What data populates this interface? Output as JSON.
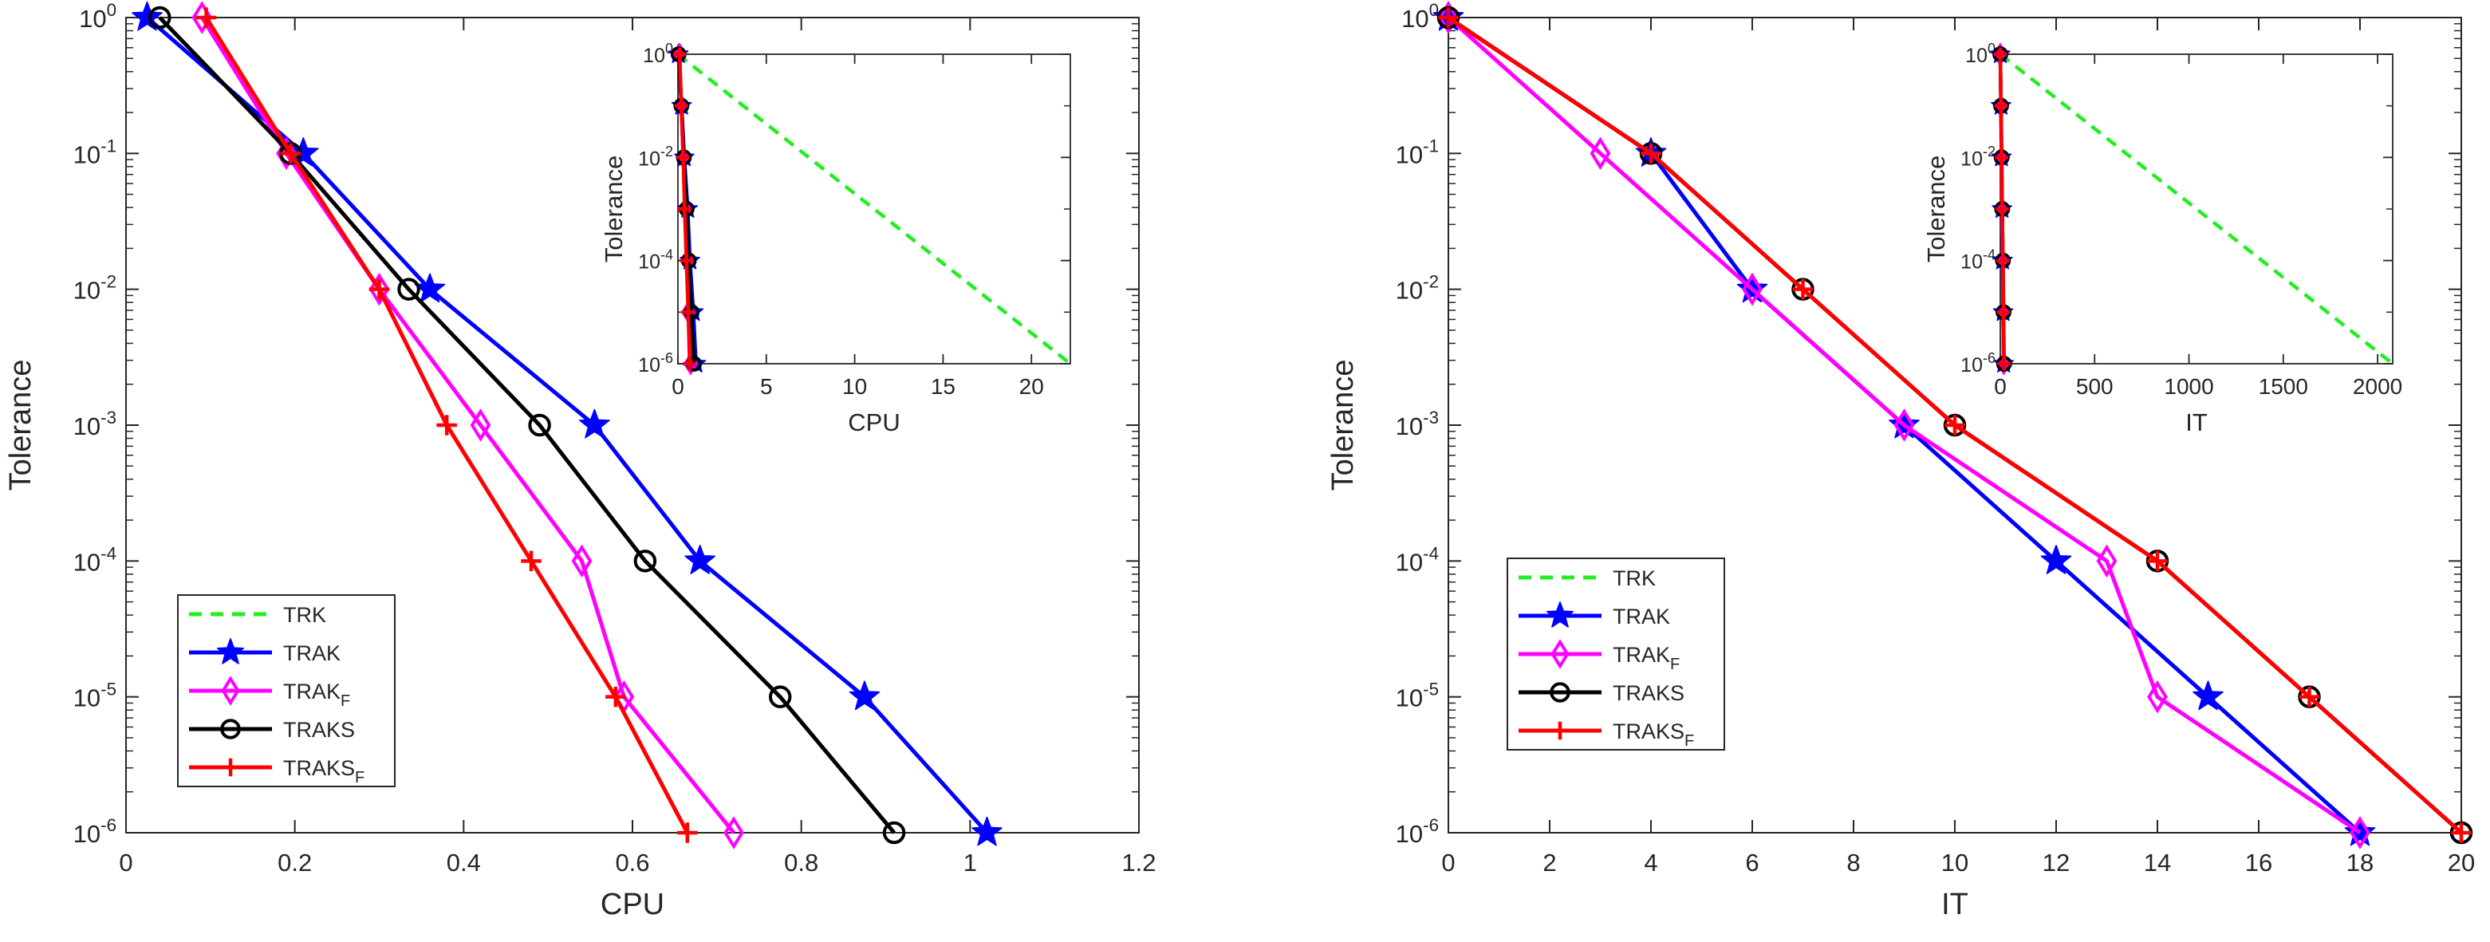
{
  "colors": {
    "TRK": "#22ee22",
    "TRAK": "#0000ff",
    "TRAK_F": "#ff00ff",
    "TRAKS": "#000000",
    "TRAKS_F": "#ff0000",
    "axis": "#262626"
  },
  "chart_data": [
    {
      "type": "line",
      "title": "",
      "xlabel": "CPU",
      "ylabel": "Tolerance",
      "xlim": [
        0,
        1.2
      ],
      "ylim": [
        1e-06,
        1
      ],
      "yscale": "log",
      "xticks": [
        0,
        0.2,
        0.4,
        0.6,
        0.8,
        1,
        1.2
      ],
      "xticklabels": [
        "0",
        "0.2",
        "0.4",
        "0.6",
        "0.8",
        "1",
        "1.2"
      ],
      "yticks": [
        1e-06,
        1e-05,
        0.0001,
        0.001,
        0.01,
        0.1,
        1
      ],
      "yticklabels": [
        [
          "10",
          "-6"
        ],
        [
          "10",
          "-5"
        ],
        [
          "10",
          "-4"
        ],
        [
          "10",
          "-3"
        ],
        [
          "10",
          "-2"
        ],
        [
          "10",
          "-1"
        ],
        [
          "10",
          "0"
        ]
      ],
      "legend_position": "lower-left",
      "legend": [
        {
          "name": "TRK",
          "sub": ""
        },
        {
          "name": "TRAK",
          "sub": ""
        },
        {
          "name": "TRAK",
          "sub": "F"
        },
        {
          "name": "TRAKS",
          "sub": ""
        },
        {
          "name": "TRAKS",
          "sub": "F"
        }
      ],
      "series": [
        {
          "name": "TRAK",
          "color": "TRAK",
          "marker": "star",
          "x": [
            0.025,
            0.21,
            0.36,
            0.555,
            0.68,
            0.875,
            1.02
          ],
          "y": [
            1,
            0.1,
            0.01,
            0.001,
            0.0001,
            1e-05,
            1e-06
          ]
        },
        {
          "name": "TRAK_F",
          "color": "TRAK_F",
          "marker": "diamond",
          "x": [
            0.09,
            0.19,
            0.3,
            0.42,
            0.54,
            0.59,
            0.72
          ],
          "y": [
            1,
            0.1,
            0.01,
            0.001,
            0.0001,
            1e-05,
            1e-06
          ]
        },
        {
          "name": "TRAKS",
          "color": "TRAKS",
          "marker": "circle",
          "x": [
            0.04,
            0.195,
            0.335,
            0.49,
            0.615,
            0.775,
            0.91
          ],
          "y": [
            1,
            0.1,
            0.01,
            0.001,
            0.0001,
            1e-05,
            1e-06
          ]
        },
        {
          "name": "TRAKS_F",
          "color": "TRAKS_F",
          "marker": "plus",
          "x": [
            0.095,
            0.195,
            0.3,
            0.38,
            0.48,
            0.58,
            0.665
          ],
          "y": [
            1,
            0.1,
            0.01,
            0.001,
            0.0001,
            1e-05,
            1e-06
          ]
        }
      ],
      "inset": {
        "xlabel": "CPU",
        "ylabel": "Tolerance",
        "xlim": [
          0,
          22.2
        ],
        "ylim": [
          1e-06,
          1
        ],
        "xticks": [
          0,
          5,
          10,
          15,
          20
        ],
        "xticklabels": [
          "0",
          "5",
          "10",
          "15",
          "20"
        ],
        "yticks": [
          1e-06,
          0.0001,
          0.01,
          1
        ],
        "yticklabels": [
          [
            "10",
            "-6"
          ],
          [
            "10",
            "-4"
          ],
          [
            "10",
            "-2"
          ],
          [
            "10",
            "0"
          ]
        ],
        "series": [
          {
            "name": "TRK",
            "color": "TRK",
            "marker": "none",
            "dashed": true,
            "x": [
              0,
              22.2
            ],
            "y": [
              1,
              1e-06
            ]
          },
          {
            "name": "TRAK",
            "color": "TRAK",
            "marker": "star",
            "x": [
              0.025,
              0.21,
              0.36,
              0.555,
              0.68,
              0.875,
              1.02
            ],
            "y": [
              1,
              0.1,
              0.01,
              0.001,
              0.0001,
              1e-05,
              1e-06
            ]
          },
          {
            "name": "TRAK_F",
            "color": "TRAK_F",
            "marker": "diamond",
            "x": [
              0.09,
              0.19,
              0.3,
              0.42,
              0.54,
              0.59,
              0.72
            ],
            "y": [
              1,
              0.1,
              0.01,
              0.001,
              0.0001,
              1e-05,
              1e-06
            ]
          },
          {
            "name": "TRAKS",
            "color": "TRAKS",
            "marker": "circle",
            "x": [
              0.04,
              0.195,
              0.335,
              0.49,
              0.615,
              0.775,
              0.91
            ],
            "y": [
              1,
              0.1,
              0.01,
              0.001,
              0.0001,
              1e-05,
              1e-06
            ]
          },
          {
            "name": "TRAKS_F",
            "color": "TRAKS_F",
            "marker": "plus",
            "x": [
              0.095,
              0.195,
              0.3,
              0.38,
              0.48,
              0.58,
              0.665
            ],
            "y": [
              1,
              0.1,
              0.01,
              0.001,
              0.0001,
              1e-05,
              1e-06
            ]
          }
        ]
      }
    },
    {
      "type": "line",
      "title": "",
      "xlabel": "IT",
      "ylabel": "Tolerance",
      "xlim": [
        0,
        20
      ],
      "ylim": [
        1e-06,
        1
      ],
      "yscale": "log",
      "xticks": [
        0,
        2,
        4,
        6,
        8,
        10,
        12,
        14,
        16,
        18,
        20
      ],
      "xticklabels": [
        "0",
        "2",
        "4",
        "6",
        "8",
        "10",
        "12",
        "14",
        "16",
        "18",
        "20"
      ],
      "yticks": [
        1e-06,
        1e-05,
        0.0001,
        0.001,
        0.01,
        0.1,
        1
      ],
      "yticklabels": [
        [
          "10",
          "-6"
        ],
        [
          "10",
          "-5"
        ],
        [
          "10",
          "-4"
        ],
        [
          "10",
          "-3"
        ],
        [
          "10",
          "-2"
        ],
        [
          "10",
          "-1"
        ],
        [
          "10",
          "0"
        ]
      ],
      "legend_position": "middle-left",
      "legend": [
        {
          "name": "TRK",
          "sub": ""
        },
        {
          "name": "TRAK",
          "sub": ""
        },
        {
          "name": "TRAK",
          "sub": "F"
        },
        {
          "name": "TRAKS",
          "sub": ""
        },
        {
          "name": "TRAKS",
          "sub": "F"
        }
      ],
      "series": [
        {
          "name": "TRAK",
          "color": "TRAK",
          "marker": "star",
          "x": [
            0,
            4,
            6,
            9,
            12,
            15,
            18
          ],
          "y": [
            1,
            0.1,
            0.01,
            0.001,
            0.0001,
            1e-05,
            1e-06
          ]
        },
        {
          "name": "TRAK_F",
          "color": "TRAK_F",
          "marker": "diamond",
          "x": [
            0,
            3,
            6,
            9,
            13,
            14,
            18
          ],
          "y": [
            1,
            0.1,
            0.01,
            0.001,
            0.0001,
            1e-05,
            1e-06
          ]
        },
        {
          "name": "TRAKS",
          "color": "TRAKS",
          "marker": "circle",
          "x": [
            0,
            4,
            7,
            10,
            14,
            17,
            20
          ],
          "y": [
            1,
            0.1,
            0.01,
            0.001,
            0.0001,
            1e-05,
            1e-06
          ]
        },
        {
          "name": "TRAKS_F",
          "color": "TRAKS_F",
          "marker": "plus",
          "x": [
            0,
            4,
            7,
            10,
            14,
            17,
            20
          ],
          "y": [
            1,
            0.1,
            0.01,
            0.001,
            0.0001,
            1e-05,
            1e-06
          ]
        }
      ],
      "inset": {
        "xlabel": "IT",
        "ylabel": "Tolerance",
        "xlim": [
          0,
          2080
        ],
        "ylim": [
          1e-06,
          1
        ],
        "xticks": [
          0,
          500,
          1000,
          1500,
          2000
        ],
        "xticklabels": [
          "0",
          "500",
          "1000",
          "1500",
          "2000"
        ],
        "yticks": [
          1e-06,
          0.0001,
          0.01,
          1
        ],
        "yticklabels": [
          [
            "10",
            "-6"
          ],
          [
            "10",
            "-4"
          ],
          [
            "10",
            "-2"
          ],
          [
            "10",
            "0"
          ]
        ],
        "series": [
          {
            "name": "TRK",
            "color": "TRK",
            "marker": "none",
            "dashed": true,
            "x": [
              0,
              2080
            ],
            "y": [
              1,
              1e-06
            ]
          },
          {
            "name": "TRAK",
            "color": "TRAK",
            "marker": "star",
            "x": [
              0,
              4,
              6,
              9,
              12,
              15,
              18
            ],
            "y": [
              1,
              0.1,
              0.01,
              0.001,
              0.0001,
              1e-05,
              1e-06
            ]
          },
          {
            "name": "TRAK_F",
            "color": "TRAK_F",
            "marker": "diamond",
            "x": [
              0,
              3,
              6,
              9,
              13,
              14,
              18
            ],
            "y": [
              1,
              0.1,
              0.01,
              0.001,
              0.0001,
              1e-05,
              1e-06
            ]
          },
          {
            "name": "TRAKS",
            "color": "TRAKS",
            "marker": "circle",
            "x": [
              0,
              4,
              7,
              10,
              14,
              17,
              20
            ],
            "y": [
              1,
              0.1,
              0.01,
              0.001,
              0.0001,
              1e-05,
              1e-06
            ]
          },
          {
            "name": "TRAKS_F",
            "color": "TRAKS_F",
            "marker": "plus",
            "x": [
              0,
              4,
              7,
              10,
              14,
              17,
              20
            ],
            "y": [
              1,
              0.1,
              0.01,
              0.001,
              0.0001,
              1e-05,
              1e-06
            ]
          }
        ]
      }
    }
  ]
}
